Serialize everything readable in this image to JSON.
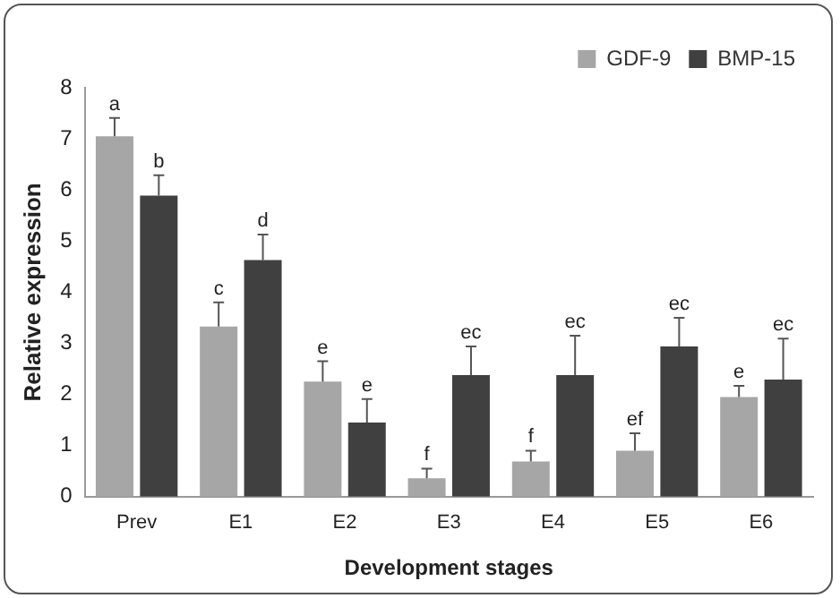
{
  "chart_data": {
    "type": "bar",
    "xlabel": "Development stages",
    "ylabel": "Relative expression",
    "categories": [
      "Prev",
      "E1",
      "E2",
      "E3",
      "E4",
      "E5",
      "E6"
    ],
    "series": [
      {
        "name": "GDF-9",
        "color": "#a6a6a6",
        "values": [
          7.05,
          3.33,
          2.25,
          0.36,
          0.69,
          0.9,
          1.95
        ],
        "errors": [
          [
            7.05,
            7.41
          ],
          [
            3.33,
            3.8
          ],
          [
            2.25,
            2.65
          ],
          [
            0.36,
            0.55
          ],
          [
            0.69,
            0.9
          ],
          [
            0.9,
            1.24
          ],
          [
            1.95,
            2.17
          ]
        ],
        "value_labels": [
          "a",
          "c",
          "e",
          "f",
          "f",
          "ef",
          "e"
        ]
      },
      {
        "name": "BMP-15",
        "color": "#404040",
        "values": [
          5.89,
          4.63,
          1.45,
          2.38,
          2.38,
          2.94,
          2.29
        ],
        "errors": [
          [
            5.89,
            6.29
          ],
          [
            4.63,
            5.13
          ],
          [
            1.45,
            1.91
          ],
          [
            2.38,
            2.94
          ],
          [
            2.38,
            3.15
          ],
          [
            2.94,
            3.5
          ],
          [
            2.29,
            3.09
          ]
        ],
        "value_labels": [
          "b",
          "d",
          "e",
          "ec",
          "ec",
          "ec",
          "ec"
        ]
      }
    ],
    "ylim": [
      0,
      8
    ],
    "yticks": [
      0,
      1,
      2,
      3,
      4,
      5,
      6,
      7,
      8
    ],
    "grid": false,
    "legend": "top right"
  }
}
